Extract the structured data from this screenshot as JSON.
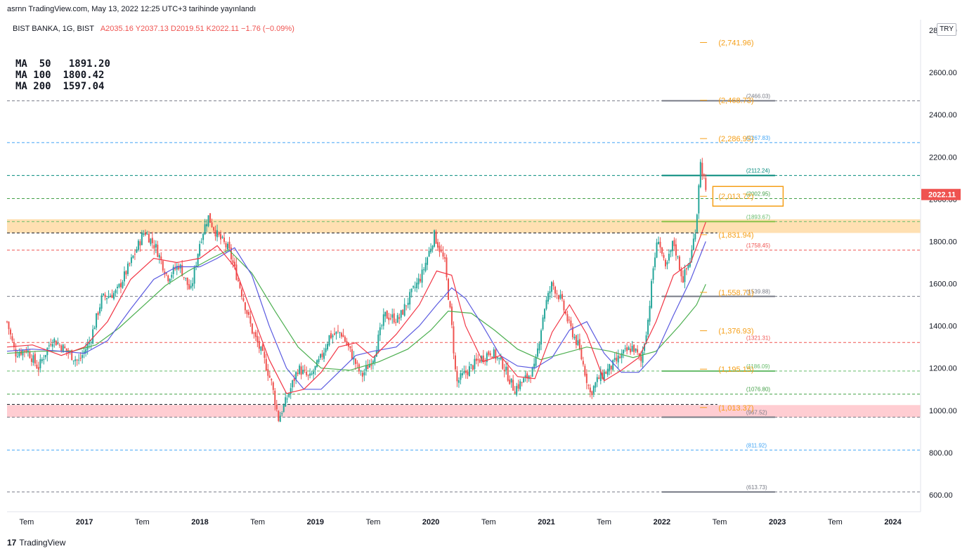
{
  "published": "asrnn TradingView.com, May 13, 2022 12:25 UTC+3 tarihinde yayınlandı",
  "header": {
    "symbol": "BIST BANKA, 1G, BIST",
    "ohlc": "A2035.16  Y2037.13  D2019.51  K2022.11  −1.76 (−0.09%)"
  },
  "ma": [
    {
      "label": "MA  50",
      "value": "1891.20"
    },
    {
      "label": "MA 100",
      "value": "1800.42"
    },
    {
      "label": "MA 200",
      "value": "1597.04"
    }
  ],
  "currency": "TRY",
  "footer": {
    "brand": "TradingView",
    "logo": "17"
  },
  "colors": {
    "up": "#26a69a",
    "down": "#ef5350",
    "ma50": "#f23645",
    "ma100": "#5b5be0",
    "ma200": "#4caf50",
    "fib": "#f59f18"
  },
  "chart_data": {
    "type": "candlestick",
    "yaxis": {
      "ticks": [
        "600.00",
        "800.00",
        "1000.00",
        "1200.00",
        "1400.00",
        "1600.00",
        "1800.00",
        "2000.00",
        "2200.00",
        "2400.00",
        "2600.00",
        "2800.00"
      ],
      "ylim": [
        520,
        2850
      ]
    },
    "xaxis": {
      "ticks": [
        {
          "label": "Tem",
          "t": 2016.5
        },
        {
          "label": "2017",
          "t": 2017.0
        },
        {
          "label": "Tem",
          "t": 2017.5
        },
        {
          "label": "2018",
          "t": 2018.0
        },
        {
          "label": "Tem",
          "t": 2018.5
        },
        {
          "label": "2019",
          "t": 2019.0
        },
        {
          "label": "Tem",
          "t": 2019.5
        },
        {
          "label": "2020",
          "t": 2020.0
        },
        {
          "label": "Tem",
          "t": 2020.5
        },
        {
          "label": "2021",
          "t": 2021.0
        },
        {
          "label": "Tem",
          "t": 2021.5
        },
        {
          "label": "2022",
          "t": 2022.0
        },
        {
          "label": "Tem",
          "t": 2022.5
        },
        {
          "label": "2023",
          "t": 2023.0
        },
        {
          "label": "Tem",
          "t": 2023.5
        },
        {
          "label": "2024",
          "t": 2024.0
        }
      ],
      "xlim": [
        2016.33,
        2024.24
      ]
    },
    "last_price": "2022.11",
    "zones": [
      {
        "from": 1840,
        "to": 1905,
        "color": "#ffe0b2"
      },
      {
        "from": 967.52,
        "to": 1025,
        "color": "#ffcdd2"
      }
    ],
    "levels": [
      {
        "value": 2466.03,
        "label": "(2466.03)",
        "color": "#787b86"
      },
      {
        "value": 2267.83,
        "label": "(2267.83)",
        "color": "#42a5f5"
      },
      {
        "value": 2112.24,
        "label": "(2112.24)",
        "color": "#00897b"
      },
      {
        "value": 2002.95,
        "label": "(2002.95)",
        "color": "#43a047"
      },
      {
        "value": 1893.67,
        "label": "(1893.67)",
        "color": "#66bb6a"
      },
      {
        "value": 1758.45,
        "label": "(1758.45)",
        "color": "#ef5350"
      },
      {
        "value": 1539.88,
        "label": "(1539.88)",
        "color": "#787b86"
      },
      {
        "value": 1321.31,
        "label": "(1321.31)",
        "color": "#ef5350"
      },
      {
        "value": 1186.09,
        "label": "(1186.09)",
        "color": "#66bb6a"
      },
      {
        "value": 1076.8,
        "label": "(1076.80)",
        "color": "#43a047"
      },
      {
        "value": 967.52,
        "label": "(967.52)",
        "color": "#787b86"
      },
      {
        "value": 811.92,
        "label": "(811.92)",
        "color": "#42a5f5"
      },
      {
        "value": 613.73,
        "label": "(613.73)",
        "color": "#787b86"
      }
    ],
    "extra_lines": [
      {
        "value": 1840,
        "color": "#131722"
      },
      {
        "value": 1028,
        "color": "#131722"
      }
    ],
    "solid_segments": [
      {
        "value": 2466.03,
        "color": "#787b86"
      },
      {
        "value": 2112.24,
        "color": "#00897b"
      },
      {
        "value": 1893.67,
        "color": "#8bc34a"
      },
      {
        "value": 1539.88,
        "color": "#787b86"
      },
      {
        "value": 1186.09,
        "color": "#66bb6a"
      },
      {
        "value": 967.52,
        "color": "#787b86"
      },
      {
        "value": 613.73,
        "color": "#787b86"
      }
    ],
    "fib_targets": [
      {
        "value": 2741.96,
        "label": "(2,741.96)"
      },
      {
        "value": 2468.73,
        "label": "(2,468.73)"
      },
      {
        "value": 2286.95,
        "label": "(2,286.95)"
      },
      {
        "value": 2013.72,
        "label": "(2,013.72)",
        "boxed": true
      },
      {
        "value": 1831.94,
        "label": "(1,831.94)"
      },
      {
        "value": 1558.71,
        "label": "(1,558.71)"
      },
      {
        "value": 1376.93,
        "label": "(1,376.93)"
      },
      {
        "value": 1195.15,
        "label": "(1,195.15)"
      },
      {
        "value": 1013.37,
        "label": "(1,013.37)"
      }
    ],
    "price_path": [
      [
        2016.33,
        1420
      ],
      [
        2016.4,
        1270
      ],
      [
        2016.5,
        1290
      ],
      [
        2016.6,
        1200
      ],
      [
        2016.72,
        1340
      ],
      [
        2016.85,
        1280
      ],
      [
        2016.95,
        1230
      ],
      [
        2017.05,
        1330
      ],
      [
        2017.15,
        1530
      ],
      [
        2017.28,
        1560
      ],
      [
        2017.4,
        1700
      ],
      [
        2017.52,
        1850
      ],
      [
        2017.62,
        1770
      ],
      [
        2017.72,
        1630
      ],
      [
        2017.82,
        1690
      ],
      [
        2017.92,
        1560
      ],
      [
        2018.0,
        1800
      ],
      [
        2018.07,
        1920
      ],
      [
        2018.15,
        1830
      ],
      [
        2018.25,
        1760
      ],
      [
        2018.35,
        1580
      ],
      [
        2018.45,
        1380
      ],
      [
        2018.55,
        1250
      ],
      [
        2018.62,
        1130
      ],
      [
        2018.68,
        960
      ],
      [
        2018.75,
        1050
      ],
      [
        2018.85,
        1200
      ],
      [
        2018.95,
        1150
      ],
      [
        2019.05,
        1250
      ],
      [
        2019.12,
        1350
      ],
      [
        2019.22,
        1370
      ],
      [
        2019.3,
        1280
      ],
      [
        2019.4,
        1160
      ],
      [
        2019.5,
        1250
      ],
      [
        2019.6,
        1450
      ],
      [
        2019.72,
        1430
      ],
      [
        2019.82,
        1540
      ],
      [
        2019.92,
        1640
      ],
      [
        2020.03,
        1830
      ],
      [
        2020.12,
        1700
      ],
      [
        2020.18,
        1400
      ],
      [
        2020.22,
        1130
      ],
      [
        2020.32,
        1190
      ],
      [
        2020.42,
        1240
      ],
      [
        2020.52,
        1280
      ],
      [
        2020.62,
        1220
      ],
      [
        2020.72,
        1100
      ],
      [
        2020.82,
        1150
      ],
      [
        2020.9,
        1200
      ],
      [
        2020.98,
        1480
      ],
      [
        2021.05,
        1600
      ],
      [
        2021.12,
        1530
      ],
      [
        2021.2,
        1400
      ],
      [
        2021.28,
        1300
      ],
      [
        2021.38,
        1080
      ],
      [
        2021.45,
        1150
      ],
      [
        2021.55,
        1200
      ],
      [
        2021.65,
        1260
      ],
      [
        2021.75,
        1300
      ],
      [
        2021.82,
        1230
      ],
      [
        2021.88,
        1430
      ],
      [
        2021.93,
        1700
      ],
      [
        2021.97,
        1820
      ],
      [
        2022.03,
        1660
      ],
      [
        2022.1,
        1800
      ],
      [
        2022.18,
        1620
      ],
      [
        2022.25,
        1720
      ],
      [
        2022.3,
        1900
      ],
      [
        2022.33,
        2180
      ],
      [
        2022.37,
        2080
      ],
      [
        2022.38,
        2022
      ]
    ],
    "ma50_path": [
      [
        2016.33,
        1300
      ],
      [
        2016.55,
        1310
      ],
      [
        2016.8,
        1260
      ],
      [
        2017.0,
        1300
      ],
      [
        2017.2,
        1420
      ],
      [
        2017.4,
        1620
      ],
      [
        2017.6,
        1720
      ],
      [
        2017.8,
        1700
      ],
      [
        2018.0,
        1720
      ],
      [
        2018.15,
        1780
      ],
      [
        2018.3,
        1680
      ],
      [
        2018.45,
        1460
      ],
      [
        2018.6,
        1240
      ],
      [
        2018.75,
        1080
      ],
      [
        2018.9,
        1100
      ],
      [
        2019.05,
        1180
      ],
      [
        2019.2,
        1300
      ],
      [
        2019.35,
        1320
      ],
      [
        2019.5,
        1250
      ],
      [
        2019.7,
        1360
      ],
      [
        2019.9,
        1500
      ],
      [
        2020.05,
        1660
      ],
      [
        2020.18,
        1640
      ],
      [
        2020.3,
        1400
      ],
      [
        2020.45,
        1230
      ],
      [
        2020.6,
        1260
      ],
      [
        2020.75,
        1160
      ],
      [
        2020.9,
        1150
      ],
      [
        2021.05,
        1370
      ],
      [
        2021.2,
        1500
      ],
      [
        2021.35,
        1360
      ],
      [
        2021.5,
        1140
      ],
      [
        2021.65,
        1190
      ],
      [
        2021.8,
        1250
      ],
      [
        2021.95,
        1420
      ],
      [
        2022.1,
        1640
      ],
      [
        2022.25,
        1700
      ],
      [
        2022.38,
        1891
      ]
    ],
    "ma100_path": [
      [
        2016.33,
        1280
      ],
      [
        2016.55,
        1290
      ],
      [
        2016.8,
        1280
      ],
      [
        2017.0,
        1270
      ],
      [
        2017.2,
        1330
      ],
      [
        2017.4,
        1480
      ],
      [
        2017.6,
        1620
      ],
      [
        2017.8,
        1680
      ],
      [
        2018.0,
        1680
      ],
      [
        2018.15,
        1720
      ],
      [
        2018.3,
        1770
      ],
      [
        2018.45,
        1640
      ],
      [
        2018.6,
        1400
      ],
      [
        2018.75,
        1200
      ],
      [
        2018.9,
        1100
      ],
      [
        2019.05,
        1100
      ],
      [
        2019.2,
        1180
      ],
      [
        2019.35,
        1260
      ],
      [
        2019.5,
        1280
      ],
      [
        2019.7,
        1300
      ],
      [
        2019.9,
        1400
      ],
      [
        2020.05,
        1500
      ],
      [
        2020.18,
        1580
      ],
      [
        2020.3,
        1530
      ],
      [
        2020.45,
        1400
      ],
      [
        2020.6,
        1260
      ],
      [
        2020.75,
        1210
      ],
      [
        2020.9,
        1200
      ],
      [
        2021.05,
        1250
      ],
      [
        2021.2,
        1380
      ],
      [
        2021.35,
        1420
      ],
      [
        2021.5,
        1270
      ],
      [
        2021.65,
        1180
      ],
      [
        2021.8,
        1180
      ],
      [
        2021.95,
        1270
      ],
      [
        2022.1,
        1450
      ],
      [
        2022.25,
        1620
      ],
      [
        2022.38,
        1800
      ]
    ],
    "ma200_path": [
      [
        2016.33,
        1270
      ],
      [
        2016.6,
        1280
      ],
      [
        2016.9,
        1280
      ],
      [
        2017.1,
        1310
      ],
      [
        2017.3,
        1390
      ],
      [
        2017.5,
        1490
      ],
      [
        2017.7,
        1590
      ],
      [
        2017.9,
        1660
      ],
      [
        2018.1,
        1720
      ],
      [
        2018.25,
        1760
      ],
      [
        2018.45,
        1650
      ],
      [
        2018.65,
        1470
      ],
      [
        2018.85,
        1300
      ],
      [
        2019.05,
        1200
      ],
      [
        2019.3,
        1190
      ],
      [
        2019.55,
        1230
      ],
      [
        2019.8,
        1290
      ],
      [
        2020.0,
        1380
      ],
      [
        2020.15,
        1470
      ],
      [
        2020.35,
        1460
      ],
      [
        2020.55,
        1380
      ],
      [
        2020.75,
        1290
      ],
      [
        2020.95,
        1240
      ],
      [
        2021.15,
        1270
      ],
      [
        2021.35,
        1300
      ],
      [
        2021.55,
        1280
      ],
      [
        2021.75,
        1250
      ],
      [
        2021.95,
        1280
      ],
      [
        2022.15,
        1400
      ],
      [
        2022.3,
        1500
      ],
      [
        2022.38,
        1597
      ]
    ]
  }
}
